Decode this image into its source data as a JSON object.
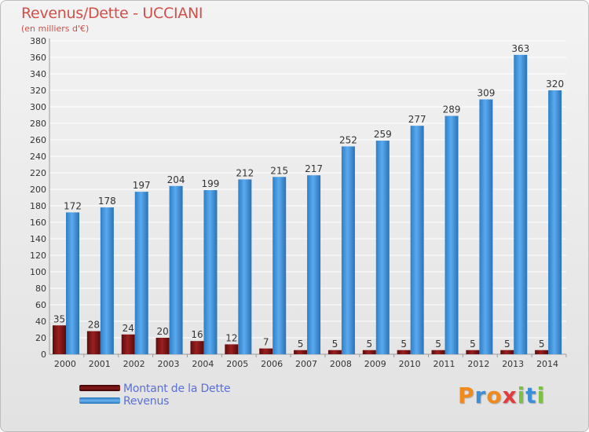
{
  "chart_data": {
    "type": "bar",
    "title": "Revenus/Dette - UCCIANI",
    "subtitle": "(en milliers d'€)",
    "xlabel": "",
    "ylabel": "",
    "ylim": [
      0,
      380
    ],
    "yticks": [
      0,
      20,
      40,
      60,
      80,
      100,
      120,
      140,
      160,
      180,
      200,
      220,
      240,
      260,
      280,
      300,
      320,
      340,
      360,
      380
    ],
    "grid": true,
    "categories": [
      "2000",
      "2001",
      "2002",
      "2003",
      "2004",
      "2005",
      "2006",
      "2007",
      "2008",
      "2009",
      "2010",
      "2011",
      "2012",
      "2013",
      "2014"
    ],
    "series": [
      {
        "name": "Montant de la Dette",
        "color": "#7a1212",
        "values": [
          35,
          28,
          24,
          20,
          16,
          12,
          7,
          5,
          5,
          5,
          5,
          5,
          5,
          5,
          5
        ]
      },
      {
        "name": "Revenus",
        "color": "#3b8fd8",
        "values": [
          172,
          178,
          197,
          204,
          199,
          212,
          215,
          217,
          252,
          259,
          277,
          289,
          309,
          363,
          320
        ]
      }
    ],
    "legend_position": "bottom-left"
  },
  "logo": {
    "text": "Proxiti"
  }
}
